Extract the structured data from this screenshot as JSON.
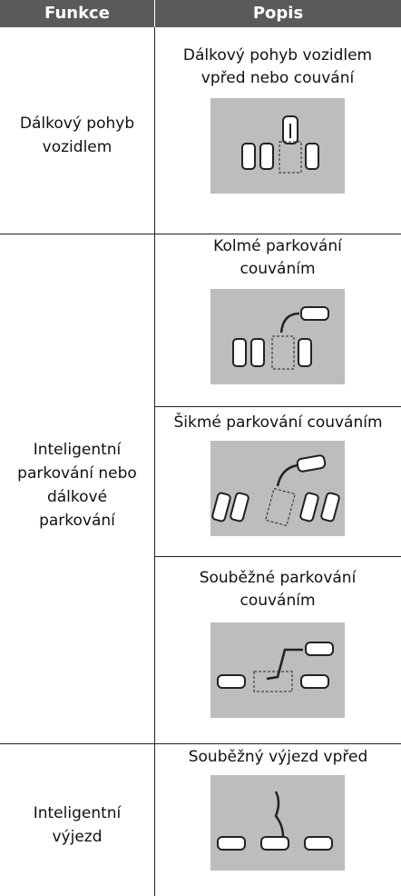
{
  "header": {
    "columns": [
      "Funkce",
      "Popis"
    ]
  },
  "rows": [
    {
      "function": "Dálkový pohyb vozidlem",
      "descriptions": [
        "Dálkový pohyb vozidlem vpřed nebo couvání"
      ]
    },
    {
      "function": "Inteligentní parkování nebo dálkové parkování",
      "descriptions": [
        "Kolmé parkování couváním",
        "Šikmé parkování couváním",
        "Souběžné parkování couváním"
      ]
    },
    {
      "function": "Inteligentní výjezd",
      "descriptions": [
        "Souběžný výjezd vpřed"
      ]
    }
  ]
}
